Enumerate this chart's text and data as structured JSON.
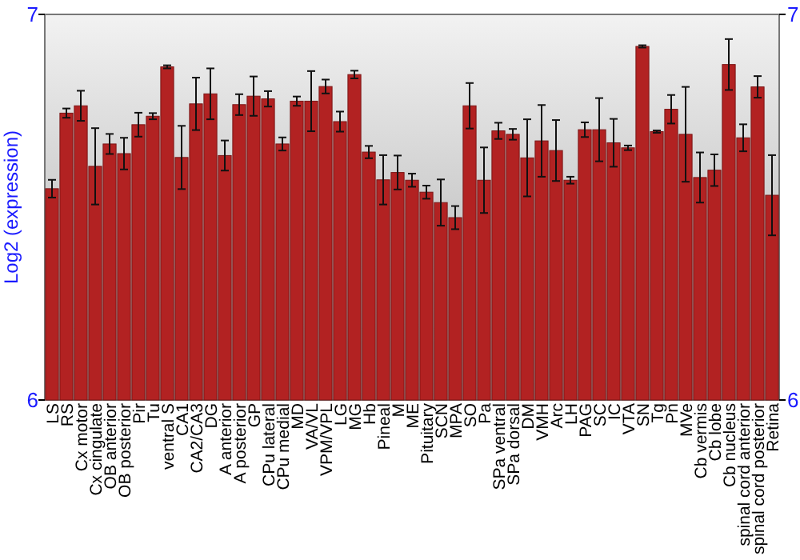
{
  "chart_data": {
    "type": "bar",
    "ylabel": "Log2 (expression)",
    "categories": [
      "LS",
      "RS",
      "Cx motor",
      "Cx cingulate",
      "OB anterior",
      "OB posterior",
      "Pir",
      "Tu",
      "ventral S",
      "CA1",
      "CA2/CA3",
      "DG",
      "A anterior",
      "A posterior",
      "GP",
      "CPu lateral",
      "CPu medial",
      "MD",
      "VA/VL",
      "VPM/VPL",
      "LG",
      "MG",
      "Hb",
      "Pineal",
      "M",
      "ME",
      "Pituitary",
      "SCN",
      "MPA",
      "SO",
      "Pa",
      "SPa ventral",
      "SPa dorsal",
      "DM",
      "VMH",
      "Arc",
      "LH",
      "PAG",
      "SC",
      "IC",
      "VTA",
      "SN",
      "Tg",
      "Pn",
      "MVe",
      "Cb vermis",
      "Cb lobe",
      "Cb nucleus",
      "spinal cord anterior",
      "spinal cord posterior",
      "Retina"
    ],
    "values": [
      6.548,
      6.744,
      6.763,
      6.606,
      6.664,
      6.639,
      6.714,
      6.736,
      6.864,
      6.629,
      6.768,
      6.794,
      6.634,
      6.766,
      6.788,
      6.781,
      6.664,
      6.775,
      6.775,
      6.813,
      6.722,
      6.844,
      6.643,
      6.571,
      6.59,
      6.57,
      6.539,
      6.512,
      6.473,
      6.763,
      6.57,
      6.698,
      6.689,
      6.628,
      6.672,
      6.647,
      6.57,
      6.701,
      6.701,
      6.667,
      6.654,
      6.917,
      6.696,
      6.754,
      6.689,
      6.577,
      6.596,
      6.87,
      6.68,
      6.812,
      6.531
    ],
    "errors": [
      0.023,
      0.012,
      0.039,
      0.099,
      0.026,
      0.041,
      0.031,
      0.008,
      0.004,
      0.082,
      0.068,
      0.066,
      0.039,
      0.027,
      0.051,
      0.02,
      0.017,
      0.012,
      0.078,
      0.018,
      0.026,
      0.01,
      0.016,
      0.064,
      0.044,
      0.017,
      0.017,
      0.06,
      0.03,
      0.059,
      0.085,
      0.021,
      0.014,
      0.1,
      0.093,
      0.079,
      0.009,
      0.019,
      0.082,
      0.062,
      0.006,
      0.003,
      0.003,
      0.037,
      0.123,
      0.065,
      0.041,
      0.066,
      0.035,
      0.028,
      0.104
    ],
    "color": "#b22222",
    "ylim": [
      6,
      7
    ],
    "yticks": [
      6,
      7
    ],
    "y2lim": [
      6,
      7
    ],
    "y2ticks": [
      6,
      7
    ],
    "grid": false
  }
}
